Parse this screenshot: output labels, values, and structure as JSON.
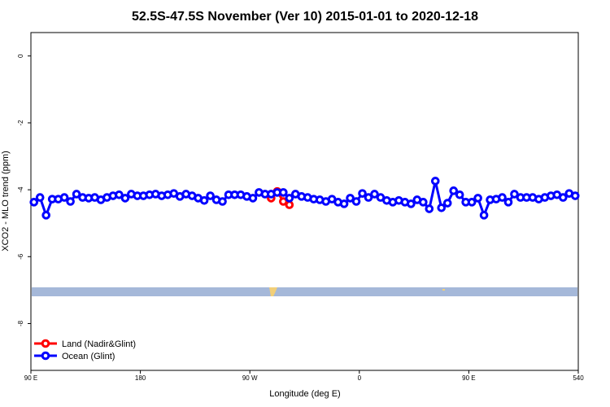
{
  "chart_data": {
    "type": "line",
    "title": "52.5S-47.5S November (Ver 10)   2015-01-01 to 2020-12-18",
    "x_label": "Longitude (deg E)",
    "y_label": "XCO2 - MLO trend (ppm)",
    "xlim": [
      90,
      540
    ],
    "ylim": [
      -9.4,
      0.7
    ],
    "xticks": [
      {
        "value": 90,
        "label": "90 E"
      },
      180,
      {
        "value": 270,
        "label": "90 W"
      },
      {
        "value": 360,
        "label": "0"
      },
      {
        "value": 450,
        "label": "90 E"
      },
      540
    ],
    "yticks": [
      -8,
      -6,
      -4,
      -2,
      0
    ],
    "legend": "bottom-left",
    "series": [
      {
        "name": "Land (Nadir&Glint)",
        "color": "#ff0000",
        "x": [
          287.5,
          292.5,
          297.5,
          302.5
        ],
        "values": [
          -4.25,
          -4.05,
          -4.35,
          -4.45
        ]
      },
      {
        "name": "Ocean (Glint)",
        "color": "#0000ff",
        "x": [
          92.5,
          97.5,
          102.5,
          107.5,
          112.5,
          117.5,
          122.5,
          127.5,
          132.5,
          137.5,
          142.5,
          147.5,
          152.5,
          157.5,
          162.5,
          167.5,
          172.5,
          177.5,
          182.5,
          187.5,
          192.5,
          197.5,
          202.5,
          207.5,
          212.5,
          217.5,
          222.5,
          227.5,
          232.5,
          237.5,
          242.5,
          247.5,
          252.5,
          257.5,
          262.5,
          267.5,
          272.5,
          277.5,
          282.5,
          287.5,
          292.5,
          297.5,
          302.5,
          307.5,
          312.5,
          317.5,
          322.5,
          327.5,
          332.5,
          337.5,
          342.5,
          347.5,
          352.5,
          357.5,
          362.5,
          367.5,
          372.5,
          377.5,
          382.5,
          387.5,
          392.5,
          397.5,
          402.5,
          407.5,
          412.5,
          417.5,
          422.5,
          427.5,
          432.5,
          437.5,
          442.5,
          447.5,
          452.5,
          457.5,
          462.5,
          467.5,
          472.5,
          477.5,
          482.5,
          487.5,
          492.5,
          497.5,
          502.5,
          507.5,
          512.5,
          517.5,
          522.5,
          527.5,
          532.5,
          537.5
        ],
        "values": [
          -4.37,
          -4.23,
          -4.76,
          -4.28,
          -4.28,
          -4.23,
          -4.35,
          -4.13,
          -4.23,
          -4.25,
          -4.23,
          -4.3,
          -4.23,
          -4.18,
          -4.15,
          -4.25,
          -4.13,
          -4.18,
          -4.18,
          -4.15,
          -4.13,
          -4.18,
          -4.15,
          -4.11,
          -4.2,
          -4.13,
          -4.18,
          -4.25,
          -4.32,
          -4.18,
          -4.3,
          -4.35,
          -4.15,
          -4.15,
          -4.15,
          -4.2,
          -4.25,
          -4.08,
          -4.13,
          -4.13,
          -4.08,
          -4.08,
          -4.25,
          -4.13,
          -4.2,
          -4.23,
          -4.28,
          -4.3,
          -4.35,
          -4.28,
          -4.37,
          -4.42,
          -4.25,
          -4.35,
          -4.11,
          -4.23,
          -4.13,
          -4.23,
          -4.32,
          -4.37,
          -4.32,
          -4.37,
          -4.42,
          -4.3,
          -4.37,
          -4.57,
          -3.74,
          -4.54,
          -4.4,
          -4.03,
          -4.15,
          -4.37,
          -4.37,
          -4.25,
          -4.76,
          -4.3,
          -4.28,
          -4.23,
          -4.37,
          -4.13,
          -4.23,
          -4.23,
          -4.23,
          -4.28,
          -4.23,
          -4.18,
          -4.15,
          -4.23,
          -4.11,
          -4.18
        ]
      }
    ]
  }
}
